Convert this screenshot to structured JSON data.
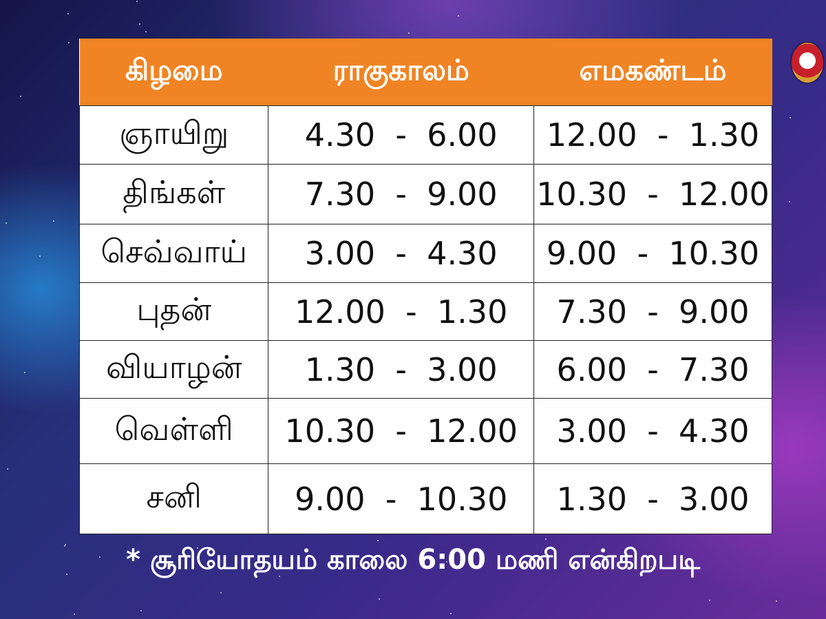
{
  "header": {
    "day": "கிழமை",
    "rahu": "ராகுகாலம்",
    "yama": "எமகண்டம்"
  },
  "rows": [
    {
      "day": "ஞாயிறு",
      "rahu": "4.30  -  6.00",
      "yama": "12.00  -  1.30"
    },
    {
      "day": "திங்கள்",
      "rahu": "7.30  -  9.00",
      "yama": "10.30  -  12.00"
    },
    {
      "day": "செவ்வாய்",
      "rahu": "3.00  -  4.30",
      "yama": "9.00  -  10.30"
    },
    {
      "day": "புதன்",
      "rahu": "12.00  -  1.30",
      "yama": "7.30  -  9.00"
    },
    {
      "day": "வியாழன்",
      "rahu": "1.30  -  3.00",
      "yama": "6.00  -  7.30"
    },
    {
      "day": "வெள்ளி",
      "rahu": "10.30  -  12.00",
      "yama": "3.00  -  4.30"
    },
    {
      "day": "சனி",
      "rahu": "9.00  -  10.30",
      "yama": "1.30  -  3.00"
    }
  ],
  "footnote": "* சூரியோதயம் காலை 6:00 மணி என்கிறபடி",
  "colors": {
    "header": "#f08424",
    "cell": "#ffffff",
    "border": "#222222"
  },
  "logo": {
    "icon": "emblem-face-icon"
  }
}
